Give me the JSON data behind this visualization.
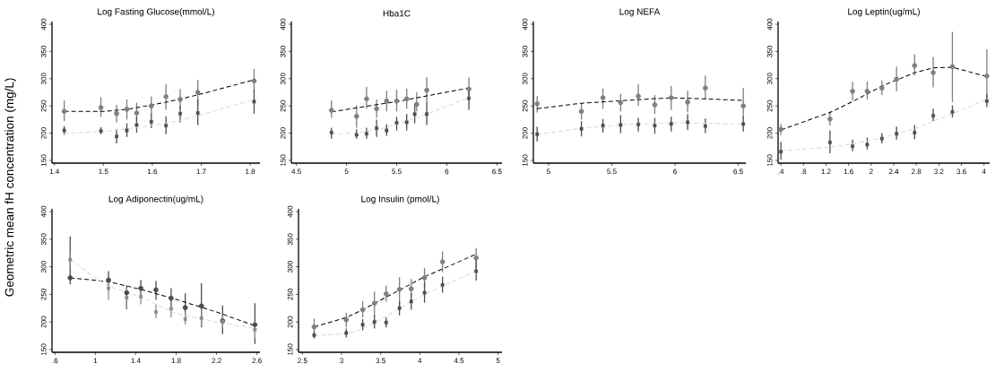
{
  "chart_data": [
    {
      "type": "scatter",
      "title": "Log Fasting Glucose(mmol/L)",
      "ylabel": "Geometric mean fH concentration (mg/L)",
      "xlim": [
        1.395,
        1.82
      ],
      "xticks": [
        1.4,
        1.5,
        1.6,
        1.7,
        1.8
      ],
      "ylim": [
        145,
        405
      ],
      "yticks": [
        150,
        200,
        250,
        300,
        350,
        400
      ],
      "series": [
        {
          "marker": "circle",
          "color": "#7f7f7f",
          "x": [
            1.42,
            1.495,
            1.527,
            1.548,
            1.568,
            1.598,
            1.628,
            1.657,
            1.693,
            1.808
          ],
          "values": [
            240,
            247,
            236,
            244,
            237,
            250,
            267,
            262,
            275,
            296
          ],
          "errors": [
            [
              222,
              260
            ],
            [
              230,
              266
            ],
            [
              220,
              252
            ],
            [
              225,
              262
            ],
            [
              222,
              256
            ],
            [
              235,
              267
            ],
            [
              243,
              290
            ],
            [
              245,
              281
            ],
            [
              250,
              298
            ],
            [
              275,
              318
            ]
          ]
        },
        {
          "marker": "square",
          "color": "#4d4d4d",
          "x": [
            1.42,
            1.495,
            1.527,
            1.548,
            1.568,
            1.598,
            1.628,
            1.657,
            1.693,
            1.808
          ],
          "values": [
            205,
            204,
            194,
            205,
            215,
            221,
            214,
            236,
            237,
            258
          ],
          "errors": [
            [
              197,
              213
            ],
            [
              198,
              211
            ],
            [
              181,
              207
            ],
            [
              193,
              218
            ],
            [
              201,
              230
            ],
            [
              209,
              236
            ],
            [
              198,
              231
            ],
            [
              220,
              250
            ],
            [
              215,
              262
            ],
            [
              236,
              280
            ]
          ]
        },
        {
          "type": "line",
          "line_style": "dashed",
          "marker": "none",
          "color": "#000000",
          "x": [
            1.42,
            1.5,
            1.55,
            1.6,
            1.65,
            1.7,
            1.808
          ],
          "values": [
            240,
            240,
            244,
            252,
            261,
            272,
            298
          ]
        },
        {
          "type": "line",
          "line_style": "dashed",
          "marker": "none",
          "color": "#d9d9d9",
          "x": [
            1.42,
            1.5,
            1.55,
            1.6,
            1.65,
            1.7,
            1.808
          ],
          "values": [
            200,
            203,
            208,
            214,
            222,
            234,
            262
          ]
        }
      ]
    },
    {
      "type": "scatter",
      "title": "Hba1C",
      "xlim": [
        4.45,
        6.55
      ],
      "xticks": [
        4.5,
        5,
        5.5,
        6,
        6.5
      ],
      "ylim": [
        145,
        405
      ],
      "yticks": [
        150,
        200,
        250,
        300,
        350,
        400
      ],
      "series": [
        {
          "marker": "circle",
          "color": "#7f7f7f",
          "x": [
            4.85,
            5.1,
            5.2,
            5.3,
            5.4,
            5.5,
            5.6,
            5.7,
            5.8,
            6.22
          ],
          "values": [
            242,
            231,
            263,
            245,
            259,
            259,
            263,
            253,
            279,
            281
          ],
          "errors": [
            [
              228,
              260
            ],
            [
              210,
              251
            ],
            [
              245,
              285
            ],
            [
              228,
              262
            ],
            [
              240,
              278
            ],
            [
              240,
              280
            ],
            [
              245,
              282
            ],
            [
              240,
              275
            ],
            [
              255,
              303
            ],
            [
              262,
              302
            ]
          ]
        },
        {
          "marker": "square",
          "color": "#4d4d4d",
          "x": [
            4.85,
            5.1,
            5.2,
            5.3,
            5.4,
            5.5,
            5.6,
            5.68,
            5.8,
            6.22
          ],
          "values": [
            201,
            197,
            199,
            209,
            205,
            219,
            220,
            235,
            235,
            264
          ],
          "errors": [
            [
              190,
              210
            ],
            [
              190,
              207
            ],
            [
              190,
              210
            ],
            [
              193,
              225
            ],
            [
              195,
              216
            ],
            [
              205,
              230
            ],
            [
              205,
              235
            ],
            [
              218,
              253
            ],
            [
              215,
              256
            ],
            [
              243,
              282
            ]
          ]
        },
        {
          "type": "line",
          "line_style": "dashed",
          "marker": "none",
          "color": "#000000",
          "x": [
            4.85,
            5.5,
            6.22
          ],
          "values": [
            239,
            258,
            283
          ]
        },
        {
          "type": "line",
          "line_style": "dashed",
          "marker": "none",
          "color": "#d9d9d9",
          "x": [
            4.85,
            5.1,
            5.4,
            5.8,
            6.22
          ],
          "values": [
            199,
            200,
            210,
            235,
            265
          ]
        }
      ]
    },
    {
      "type": "scatter",
      "title": "Log  NEFA",
      "xlim": [
        4.88,
        6.56
      ],
      "xticks": [
        5,
        5.5,
        6,
        6.5
      ],
      "ylim": [
        145,
        405
      ],
      "yticks": [
        150,
        200,
        250,
        300,
        350,
        400
      ],
      "series": [
        {
          "marker": "circle",
          "color": "#7f7f7f",
          "x": [
            4.91,
            5.26,
            5.43,
            5.57,
            5.71,
            5.84,
            5.97,
            6.1,
            6.24,
            6.54
          ],
          "values": [
            254,
            240,
            265,
            256,
            268,
            252,
            265,
            257,
            283,
            250
          ],
          "errors": [
            [
              238,
              268
            ],
            [
              225,
              255
            ],
            [
              245,
              282
            ],
            [
              240,
              272
            ],
            [
              250,
              290
            ],
            [
              235,
              270
            ],
            [
              243,
              287
            ],
            [
              238,
              278
            ],
            [
              262,
              306
            ],
            [
              228,
              283
            ]
          ]
        },
        {
          "marker": "square",
          "color": "#4d4d4d",
          "x": [
            4.91,
            5.26,
            5.43,
            5.57,
            5.71,
            5.84,
            5.97,
            6.1,
            6.24,
            6.54
          ],
          "values": [
            198,
            208,
            214,
            215,
            216,
            214,
            217,
            220,
            213,
            217
          ],
          "errors": [
            [
              185,
              212
            ],
            [
              194,
              222
            ],
            [
              201,
              226
            ],
            [
              200,
              233
            ],
            [
              203,
              228
            ],
            [
              199,
              228
            ],
            [
              203,
              230
            ],
            [
              206,
              235
            ],
            [
              200,
              227
            ],
            [
              203,
              231
            ]
          ]
        },
        {
          "type": "line",
          "line_style": "dashed",
          "marker": "none",
          "color": "#000000",
          "x": [
            4.91,
            5.26,
            5.6,
            5.97,
            6.24,
            6.54
          ],
          "values": [
            245,
            255,
            260,
            265,
            263,
            260
          ]
        },
        {
          "type": "line",
          "line_style": "dashed",
          "marker": "none",
          "color": "#d9d9d9",
          "x": [
            4.91,
            5.26,
            5.6,
            6.0,
            6.54
          ],
          "values": [
            198,
            209,
            216,
            219,
            217
          ]
        }
      ]
    },
    {
      "type": "scatter",
      "title": "Log Leptin(ug/mL)",
      "xlim": [
        0.35,
        4.1
      ],
      "xticks": [
        {
          "value": 0.4,
          "label": ".4"
        },
        {
          "value": 0.8,
          "label": ".8"
        },
        1.2,
        1.6,
        2,
        2.4,
        2.8,
        3.2,
        3.6,
        4
      ],
      "ylim": [
        145,
        405
      ],
      "yticks": [
        150,
        200,
        250,
        300,
        350,
        400
      ],
      "series": [
        {
          "marker": "circle",
          "color": "#7f7f7f",
          "x": [
            0.4,
            1.27,
            1.67,
            1.93,
            2.19,
            2.45,
            2.77,
            3.1,
            3.44,
            4.05
          ],
          "values": [
            207,
            226,
            277,
            277,
            283,
            299,
            324,
            311,
            322,
            305
          ],
          "errors": [
            [
              197,
              217
            ],
            [
              214,
              240
            ],
            [
              260,
              294
            ],
            [
              262,
              295
            ],
            [
              270,
              297
            ],
            [
              277,
              322
            ],
            [
              306,
              345
            ],
            [
              284,
              340
            ],
            [
              257,
              386
            ],
            [
              265,
              354
            ]
          ]
        },
        {
          "marker": "square",
          "color": "#4d4d4d",
          "x": [
            0.4,
            1.27,
            1.67,
            1.93,
            2.19,
            2.45,
            2.77,
            3.1,
            3.44,
            4.05
          ],
          "values": [
            166,
            183,
            176,
            179,
            190,
            199,
            201,
            232,
            239,
            259
          ],
          "errors": [
            [
              151,
              184
            ],
            [
              163,
              205
            ],
            [
              167,
              188
            ],
            [
              170,
              192
            ],
            [
              181,
              200
            ],
            [
              188,
              212
            ],
            [
              189,
              215
            ],
            [
              222,
              245
            ],
            [
              229,
              251
            ],
            [
              248,
              272
            ]
          ]
        },
        {
          "type": "line",
          "line_style": "dashed",
          "marker": "none",
          "color": "#000000",
          "x": [
            0.4,
            1.27,
            1.67,
            2.2,
            2.77,
            3.1,
            3.44,
            4.05
          ],
          "values": [
            206,
            238,
            258,
            287,
            311,
            320,
            321,
            304
          ]
        },
        {
          "type": "line",
          "line_style": "dashed",
          "marker": "none",
          "color": "#d9d9d9",
          "x": [
            0.4,
            1.27,
            1.67,
            2.2,
            2.77,
            3.1,
            3.44,
            4.05
          ],
          "values": [
            168,
            174,
            180,
            192,
            208,
            222,
            236,
            262
          ]
        }
      ]
    },
    {
      "type": "scatter",
      "title": "Log Adiponectin(ug/mL)",
      "xlim": [
        0.57,
        2.63
      ],
      "xticks": [
        {
          "value": 0.6,
          "label": ".6"
        },
        1,
        1.4,
        1.8,
        2.2,
        2.6
      ],
      "ylim": [
        145,
        405
      ],
      "yticks": [
        150,
        200,
        250,
        300,
        350,
        400
      ],
      "series": [
        {
          "marker": "circle",
          "color": "#4d4d4d",
          "x": [
            0.75,
            1.13,
            1.31,
            1.45,
            1.6,
            1.75,
            1.89,
            2.05,
            2.26,
            2.58
          ],
          "values": [
            280,
            276,
            253,
            261,
            258,
            243,
            226,
            229,
            202,
            195
          ],
          "errors": [
            [
              268,
              355
            ],
            [
              260,
              292
            ],
            [
              223,
              266
            ],
            [
              245,
              276
            ],
            [
              240,
              274
            ],
            [
              225,
              261
            ],
            [
              208,
              252
            ],
            [
              190,
              270
            ],
            [
              178,
              230
            ],
            [
              160,
              234
            ]
          ]
        },
        {
          "marker": "square",
          "color": "#8c8c8c",
          "x": [
            0.75,
            1.13,
            1.31,
            1.45,
            1.6,
            1.75,
            1.89,
            2.05,
            2.26,
            2.58
          ],
          "values": [
            313,
            261,
            244,
            246,
            218,
            224,
            205,
            207,
            201,
            186
          ],
          "errors": [
            [
              300,
              326
            ],
            [
              240,
              280
            ],
            [
              225,
              262
            ],
            [
              232,
              262
            ],
            [
              207,
              232
            ],
            [
              208,
              240
            ],
            [
              195,
              218
            ],
            [
              192,
              222
            ],
            [
              190,
              213
            ],
            [
              170,
              200
            ]
          ]
        },
        {
          "type": "line",
          "line_style": "dashed",
          "marker": "none",
          "color": "#000000",
          "x": [
            0.75,
            1.13,
            1.45,
            1.8,
            2.2,
            2.58
          ],
          "values": [
            280,
            273,
            259,
            241,
            218,
            193
          ]
        },
        {
          "type": "line",
          "line_style": "dashed",
          "marker": "none",
          "color": "#d9d9d9",
          "x": [
            0.75,
            1.0,
            1.13,
            1.45,
            1.8,
            2.2,
            2.58
          ],
          "values": [
            313,
            280,
            265,
            245,
            215,
            200,
            188
          ]
        }
      ]
    },
    {
      "type": "scatter",
      "title": "Log Insulin (pmol/L)",
      "xlim": [
        2.45,
        5.05
      ],
      "xticks": [
        2.5,
        3,
        3.5,
        4,
        4.5,
        5
      ],
      "ylim": [
        145,
        405
      ],
      "yticks": [
        150,
        200,
        250,
        300,
        350,
        400
      ],
      "series": [
        {
          "marker": "circle",
          "color": "#7f7f7f",
          "x": [
            2.65,
            3.06,
            3.27,
            3.42,
            3.57,
            3.74,
            3.89,
            4.06,
            4.29,
            4.72
          ],
          "values": [
            191,
            204,
            222,
            234,
            251,
            259,
            260,
            280,
            309,
            316
          ],
          "errors": [
            [
              178,
              206
            ],
            [
              190,
              217
            ],
            [
              208,
              238
            ],
            [
              210,
              255
            ],
            [
              237,
              266
            ],
            [
              225,
              281
            ],
            [
              245,
              278
            ],
            [
              262,
              298
            ],
            [
              290,
              328
            ],
            [
              298,
              334
            ]
          ]
        },
        {
          "marker": "square",
          "color": "#4d4d4d",
          "x": [
            2.65,
            3.06,
            3.27,
            3.42,
            3.57,
            3.74,
            3.89,
            4.06,
            4.29,
            4.72
          ],
          "values": [
            176,
            180,
            195,
            200,
            199,
            225,
            237,
            253,
            267,
            292
          ],
          "errors": [
            [
              170,
              183
            ],
            [
              172,
              188
            ],
            [
              185,
              205
            ],
            [
              188,
              212
            ],
            [
              190,
              208
            ],
            [
              212,
              238
            ],
            [
              222,
              252
            ],
            [
              235,
              272
            ],
            [
              253,
              282
            ],
            [
              275,
              315
            ]
          ]
        },
        {
          "type": "line",
          "line_style": "dashed",
          "marker": "none",
          "color": "#000000",
          "x": [
            2.65,
            3.06,
            3.27,
            3.57,
            3.89,
            4.06,
            4.29,
            4.72
          ],
          "values": [
            191,
            208,
            222,
            245,
            269,
            282,
            296,
            323
          ]
        },
        {
          "type": "line",
          "line_style": "dashed",
          "marker": "none",
          "color": "#d9d9d9",
          "x": [
            2.65,
            3.06,
            3.27,
            3.57,
            3.89,
            4.06,
            4.29,
            4.72
          ],
          "values": [
            176,
            178,
            188,
            210,
            237,
            250,
            265,
            293
          ]
        }
      ]
    }
  ]
}
